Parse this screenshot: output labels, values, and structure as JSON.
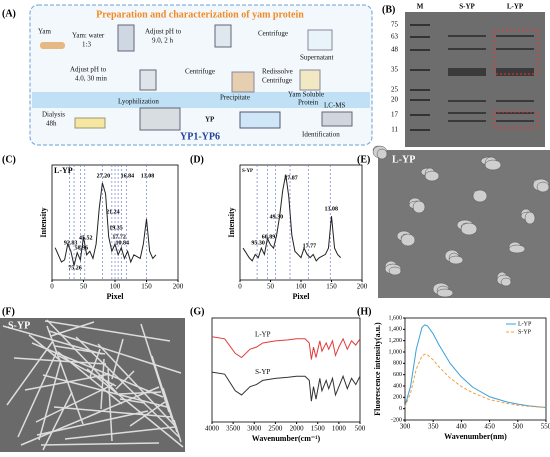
{
  "panel_labels": [
    "(A)",
    "(B)",
    "(C)",
    "(D)",
    "(E)",
    "(F)",
    "(G)",
    "(H)"
  ],
  "scheme": {
    "title": "Preparation and characterization of yam protein",
    "steps": [
      "Yam",
      "Yam: water",
      "1:3",
      "Adjust pH to",
      "9.0, 2 h",
      "Centrifuge",
      "Supernatant",
      "Adjust pH to",
      "4.0, 30 min",
      "Centrifuge",
      "Precipitate",
      "Redissolve",
      "Centrifuge",
      "Yam Soluble",
      "Protein",
      "Dialysis",
      "48h",
      "Lyophilization",
      "YP",
      "LC-MS",
      "Identification",
      "YP1-YP6"
    ]
  },
  "gel": {
    "lanes": [
      "M",
      "S-YP",
      "L-YP"
    ],
    "markers": [
      75,
      63,
      48,
      35,
      25,
      20,
      17,
      11
    ]
  },
  "micrographs": [
    "L-YP",
    "S-YP"
  ],
  "chart_data": [
    {
      "type": "line",
      "xlabel": "Pixel",
      "ylabel": "Intensity",
      "xlim": [
        0,
        200
      ],
      "xticks": [
        0,
        50,
        100,
        150,
        200
      ],
      "ylim": [
        100,
        260
      ],
      "x": [
        5,
        15,
        20,
        25,
        30,
        35,
        40,
        45,
        50,
        55,
        60,
        65,
        70,
        75,
        80,
        85,
        90,
        95,
        100,
        105,
        110,
        115,
        120,
        125,
        130,
        140,
        145,
        150,
        155,
        160,
        165
      ],
      "series": [
        {
          "name": "L-YP",
          "color": "#222222",
          "values": [
            145,
            125,
            128,
            150,
            140,
            120,
            138,
            128,
            160,
            135,
            140,
            130,
            150,
            200,
            235,
            220,
            160,
            140,
            150,
            135,
            145,
            130,
            140,
            125,
            135,
            130,
            150,
            185,
            140,
            130,
            135
          ]
        }
      ],
      "annotations": [
        {
          "text": "92.83",
          "x": 28
        },
        {
          "text": "75.26",
          "x": 35
        },
        {
          "text": "58.96",
          "x": 45
        },
        {
          "text": "45.52",
          "x": 52
        },
        {
          "text": "27.20",
          "x": 80
        },
        {
          "text": "21.24",
          "x": 95
        },
        {
          "text": "19.35",
          "x": 100
        },
        {
          "text": "17.72",
          "x": 105
        },
        {
          "text": "10.84",
          "x": 110
        },
        {
          "text": "16.84",
          "x": 118
        },
        {
          "text": "13.08",
          "x": 150
        }
      ]
    },
    {
      "type": "line",
      "xlabel": "Pixel",
      "ylabel": "Intensity",
      "xlim": [
        0,
        200
      ],
      "xticks": [
        0,
        50,
        100,
        150,
        200
      ],
      "ylim": [
        100,
        280
      ],
      "x": [
        5,
        15,
        20,
        25,
        30,
        35,
        40,
        45,
        50,
        55,
        60,
        65,
        70,
        75,
        80,
        85,
        90,
        95,
        100,
        105,
        110,
        115,
        120,
        125,
        130,
        140,
        145,
        150,
        155,
        160,
        165
      ],
      "series": [
        {
          "name": "S-YP",
          "color": "#222222",
          "values": [
            150,
            135,
            130,
            140,
            135,
            150,
            140,
            165,
            155,
            150,
            170,
            200,
            240,
            265,
            230,
            170,
            145,
            140,
            135,
            150,
            140,
            135,
            140,
            130,
            135,
            140,
            150,
            200,
            150,
            140,
            135
          ]
        }
      ],
      "annotations": [
        {
          "text": "95.30",
          "x": 28
        },
        {
          "text": "60.89",
          "x": 45
        },
        {
          "text": "49.30",
          "x": 58
        },
        {
          "text": "27.87",
          "x": 82
        },
        {
          "text": "17.77",
          "x": 112
        },
        {
          "text": "13.08",
          "x": 148
        }
      ]
    },
    {
      "type": "line",
      "xlabel": "Wavenumber(cm⁻¹)",
      "xlim": [
        4000,
        500
      ],
      "xticks": [
        4000,
        3500,
        3000,
        2500,
        2000,
        1500,
        1000,
        500
      ],
      "ylim": [
        0,
        100
      ],
      "x": [
        4000,
        3700,
        3450,
        3300,
        3100,
        2950,
        2800,
        2500,
        2200,
        2000,
        1800,
        1700,
        1650,
        1600,
        1540,
        1450,
        1400,
        1300,
        1240,
        1150,
        1080,
        1000,
        900,
        800,
        700,
        600,
        500
      ],
      "series": [
        {
          "name": "L-YP",
          "color": "#e23b3b",
          "values": [
            82,
            80,
            66,
            62,
            70,
            72,
            76,
            78,
            79,
            80,
            80,
            76,
            60,
            72,
            62,
            78,
            68,
            76,
            70,
            78,
            64,
            72,
            80,
            70,
            78,
            74,
            80
          ]
        },
        {
          "name": "S-YP",
          "color": "#333333",
          "values": [
            48,
            46,
            30,
            26,
            34,
            36,
            40,
            42,
            43,
            44,
            44,
            40,
            20,
            34,
            22,
            42,
            30,
            40,
            32,
            42,
            26,
            34,
            44,
            32,
            42,
            36,
            44
          ]
        }
      ]
    },
    {
      "type": "line",
      "xlabel": "Wavenumber(nm)",
      "ylabel": "Fluorescence intensity(a.u.)",
      "xlim": [
        300,
        550
      ],
      "xticks": [
        300,
        350,
        400,
        450,
        500,
        550
      ],
      "ylim": [
        -200,
        1600
      ],
      "yticks": [
        -200,
        0,
        200,
        400,
        600,
        800,
        {
          "value": 1000,
          "label": "1,000"
        },
        {
          "value": 1200,
          "label": "1,200"
        },
        {
          "value": 1400,
          "label": "1,400"
        },
        {
          "value": 1600,
          "label": "1,600"
        }
      ],
      "legend": "upper right",
      "x": [
        300,
        310,
        320,
        330,
        335,
        340,
        350,
        360,
        380,
        400,
        420,
        450,
        480,
        500,
        520,
        550
      ],
      "series": [
        {
          "name": "L-YP",
          "color": "#3aa0d8",
          "values": [
            50,
            400,
            1050,
            1430,
            1480,
            1460,
            1320,
            1130,
            800,
            560,
            380,
            210,
            120,
            80,
            50,
            20
          ]
        },
        {
          "name": "S-YP",
          "color": "#f0a040",
          "dash": true,
          "values": [
            30,
            280,
            700,
            930,
            960,
            950,
            860,
            740,
            540,
            390,
            280,
            160,
            95,
            60,
            40,
            20
          ]
        }
      ]
    }
  ]
}
